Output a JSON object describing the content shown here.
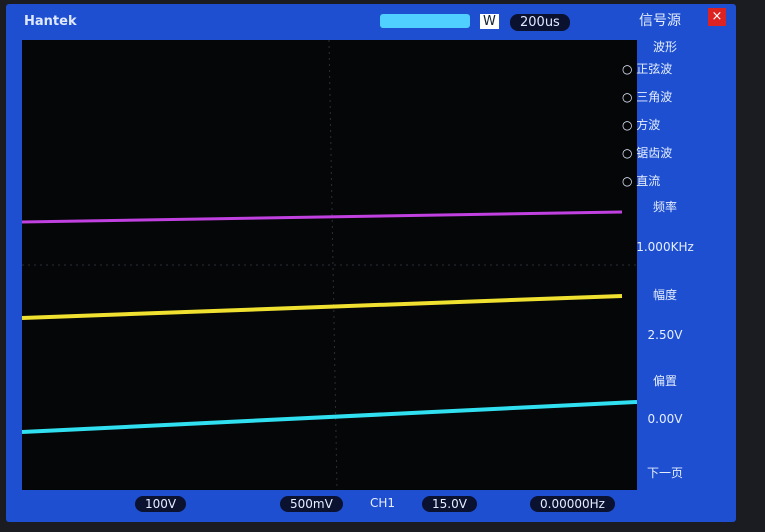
{
  "header": {
    "brand": "Hantek",
    "timebase_mode": "W",
    "timebase": "200us"
  },
  "menu": {
    "title": "信号源",
    "section": "波形",
    "options": [
      "○ 正弦波",
      "○ 三角波",
      "○ 方波",
      "○ 锯齿波",
      "○ 直流"
    ],
    "frequency_label": "频率",
    "frequency": "1.000KHz",
    "amplitude_label": "幅度",
    "amplitude": "2.50V",
    "offset_label": "偏置",
    "offset": "0.00V",
    "next_page": "下一页"
  },
  "footer": {
    "ch_scale": "100V",
    "ch_volts": "500mV",
    "trigger_source": "CH1",
    "trigger_level": "15.0V",
    "frequency": "0.00000Hz"
  }
}
